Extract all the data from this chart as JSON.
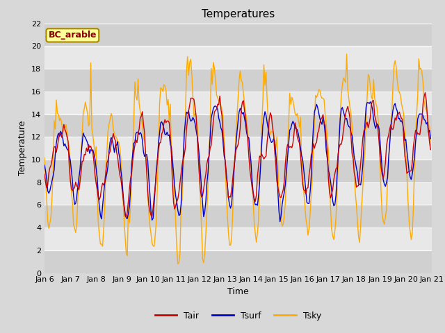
{
  "title": "Temperatures",
  "xlabel": "Time",
  "ylabel": "Temperature",
  "ylim": [
    0,
    22
  ],
  "yticks": [
    0,
    2,
    4,
    6,
    8,
    10,
    12,
    14,
    16,
    18,
    20,
    22
  ],
  "n_days": 15,
  "xtick_labels": [
    "Jan 6",
    "Jan 7",
    "Jan 8",
    "Jan 9",
    "Jan 10",
    "Jan 11",
    "Jan 12",
    "Jan 13",
    "Jan 14",
    "Jan 15",
    "Jan 16",
    "Jan 17",
    "Jan 18",
    "Jan 19",
    "Jan 20",
    "Jan 21"
  ],
  "color_tair": "#cc0000",
  "color_tsurf": "#0000cc",
  "color_tsky": "#ffaa00",
  "linewidth": 1.0,
  "fig_bg": "#d8d8d8",
  "plot_bg": "#e8e8e8",
  "band_color": "#d0d0d0",
  "legend_label": "BC_arable",
  "legend_bg": "#ffff99",
  "legend_border": "#aa8800",
  "legend_text_color": "#880000",
  "grid_color": "#ffffff",
  "dt_hours": 1.0
}
